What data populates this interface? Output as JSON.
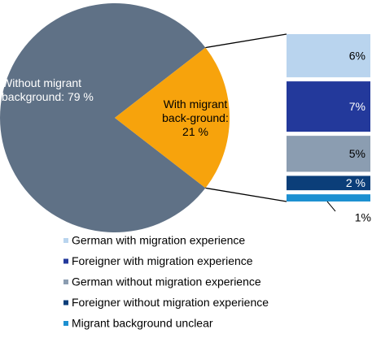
{
  "chart_data": {
    "type": "pie-of-bar",
    "pie": {
      "values": [
        79,
        21
      ],
      "value_labels": [
        "Without migrant background: 79 %",
        "With migrant back-ground: 21 %"
      ],
      "colors": [
        "#5f7186",
        "#f7a30c"
      ]
    },
    "bar": {
      "series": [
        {
          "name": "German with migration experience",
          "color": "#b9d4ee",
          "values": [
            6
          ],
          "value_labels": [
            "6%"
          ]
        },
        {
          "name": "Foreigner with migration experience",
          "color": "#23399b",
          "values": [
            7
          ],
          "value_labels": [
            "7%"
          ]
        },
        {
          "name": "German without migration experience",
          "color": "#8b9db1",
          "values": [
            5
          ],
          "value_labels": [
            "5%"
          ]
        },
        {
          "name": "Foreigner without migration experience",
          "color": "#0b3e79",
          "values": [
            2
          ],
          "value_labels": [
            "2 %"
          ]
        },
        {
          "name": "Migrant background unclear",
          "color": "#1d90d1",
          "values": [
            1
          ],
          "value_labels": [
            "1%"
          ]
        }
      ]
    }
  }
}
